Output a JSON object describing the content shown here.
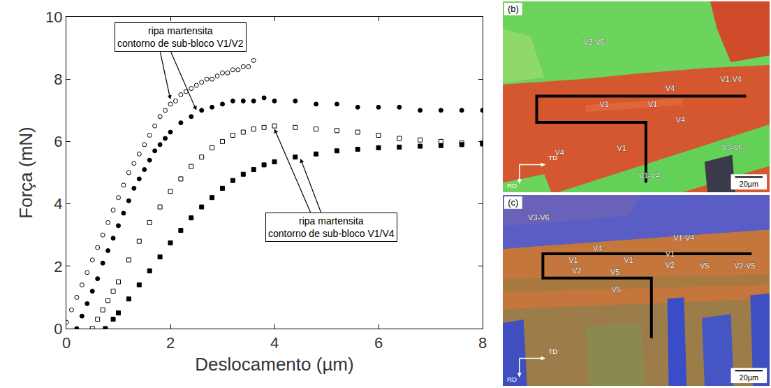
{
  "chart_data": {
    "type": "scatter",
    "x_label": "Deslocamento (µm)",
    "y_label": "Força (mN)",
    "xlim": [
      0,
      8
    ],
    "ylim": [
      0,
      10
    ],
    "xticks": [
      0,
      2,
      4,
      6,
      8
    ],
    "yticks": [
      0,
      2,
      4,
      6,
      8,
      10
    ],
    "grid": false,
    "series": [
      {
        "marker": "circle-open",
        "color": "#000000",
        "x": [
          0,
          0.1,
          0.2,
          0.3,
          0.4,
          0.5,
          0.6,
          0.7,
          0.8,
          0.9,
          1.0,
          1.1,
          1.2,
          1.3,
          1.4,
          1.5,
          1.6,
          1.7,
          1.8,
          1.9,
          2.0,
          2.1,
          2.2,
          2.3,
          2.4,
          2.5,
          2.6,
          2.7,
          2.8,
          2.9,
          3.0,
          3.1,
          3.2,
          3.3,
          3.4,
          3.5,
          3.6
        ],
        "values": [
          0.2,
          0.6,
          1.0,
          1.4,
          1.8,
          2.2,
          2.6,
          3.0,
          3.4,
          3.8,
          4.2,
          4.6,
          5.0,
          5.3,
          5.6,
          5.9,
          6.2,
          6.5,
          6.8,
          7.0,
          7.2,
          7.3,
          7.5,
          7.6,
          7.7,
          7.8,
          7.9,
          8.0,
          8.0,
          8.1,
          8.2,
          8.2,
          8.3,
          8.3,
          8.4,
          8.4,
          8.6
        ]
      },
      {
        "marker": "circle",
        "color": "#000000",
        "x": [
          0.2,
          0.3,
          0.4,
          0.5,
          0.6,
          0.7,
          0.8,
          0.9,
          1.0,
          1.1,
          1.2,
          1.3,
          1.4,
          1.5,
          1.6,
          1.7,
          1.8,
          1.9,
          2.0,
          2.2,
          2.4,
          2.6,
          2.8,
          3.0,
          3.2,
          3.4,
          3.6,
          3.8,
          4.0,
          4.4,
          4.8,
          5.2,
          5.6,
          6.0,
          6.4,
          6.8,
          7.2,
          7.6,
          8.0
        ],
        "values": [
          0,
          0.4,
          0.8,
          1.2,
          1.6,
          2.1,
          2.5,
          2.9,
          3.3,
          3.7,
          4.1,
          4.5,
          4.8,
          5.1,
          5.4,
          5.7,
          5.9,
          6.1,
          6.3,
          6.6,
          6.8,
          7.0,
          7.1,
          7.2,
          7.3,
          7.3,
          7.3,
          7.4,
          7.3,
          7.3,
          7.2,
          7.2,
          7.1,
          7.1,
          7.1,
          7.0,
          7.0,
          7.0,
          7.0
        ]
      },
      {
        "marker": "square-open",
        "color": "#000000",
        "x": [
          0.5,
          0.6,
          0.7,
          0.8,
          0.9,
          1.0,
          1.2,
          1.4,
          1.6,
          1.8,
          2.0,
          2.2,
          2.4,
          2.6,
          2.8,
          3.0,
          3.2,
          3.4,
          3.6,
          3.8,
          4.0,
          4.4,
          4.8,
          5.2,
          5.6,
          6.0,
          6.4,
          6.8,
          7.2,
          7.6,
          8.0
        ],
        "values": [
          0,
          0.3,
          0.6,
          0.9,
          1.2,
          1.5,
          2.2,
          2.8,
          3.4,
          3.9,
          4.4,
          4.8,
          5.2,
          5.5,
          5.8,
          6.0,
          6.2,
          6.3,
          6.4,
          6.45,
          6.5,
          6.45,
          6.4,
          6.35,
          6.3,
          6.2,
          6.1,
          6.05,
          6.0,
          5.95,
          5.95
        ]
      },
      {
        "marker": "square",
        "color": "#000000",
        "x": [
          0.75,
          0.9,
          1.0,
          1.2,
          1.4,
          1.6,
          1.8,
          2.0,
          2.2,
          2.4,
          2.6,
          2.8,
          3.0,
          3.2,
          3.4,
          3.6,
          3.8,
          4.0,
          4.4,
          4.8,
          5.2,
          5.6,
          6.0,
          6.4,
          6.8,
          7.2,
          7.6,
          8.0
        ],
        "values": [
          0,
          0.3,
          0.5,
          0.95,
          1.4,
          1.85,
          2.3,
          2.75,
          3.15,
          3.55,
          3.9,
          4.2,
          4.5,
          4.75,
          4.95,
          5.1,
          5.25,
          5.35,
          5.5,
          5.6,
          5.7,
          5.75,
          5.8,
          5.82,
          5.85,
          5.87,
          5.9,
          5.92
        ]
      }
    ],
    "annotations": [
      {
        "lines": [
          "ripa martensita",
          "contorno de sub-bloco V1/V2"
        ],
        "x": 2.2,
        "y": 9.35,
        "arrows": [
          {
            "from": [
              1.8,
              8.9
            ],
            "to": [
              2.0,
              7.35
            ]
          },
          {
            "from": [
              2.0,
              8.9
            ],
            "to": [
              2.5,
              7.0
            ]
          }
        ]
      },
      {
        "lines": [
          "ripa martensita",
          "contorno de sub-bloco V1/V4"
        ],
        "x": 5.1,
        "y": 3.25,
        "arrows": [
          {
            "from": [
              4.7,
              3.7
            ],
            "to": [
              4.0,
              6.4
            ]
          },
          {
            "from": [
              4.9,
              3.7
            ],
            "to": [
              4.5,
              5.45
            ]
          }
        ]
      }
    ]
  },
  "panels": [
    {
      "label": "(b)",
      "labels": [
        "V3-V6",
        "V1-V4",
        "V4",
        "V1",
        "V1",
        "V4",
        "V4",
        "V1",
        "V3-V6",
        "V1-V4"
      ],
      "axes": [
        "TD",
        "RD"
      ],
      "scale_bar": "20µm"
    },
    {
      "label": "(c)",
      "labels": [
        "V3-V6",
        "V1-V4",
        "V4",
        "V1",
        "V1",
        "V1",
        "V2",
        "V2",
        "V5",
        "V5",
        "V2-V5",
        "V5"
      ],
      "axes": [
        "TD",
        "RD"
      ],
      "scale_bar": "20µm"
    }
  ]
}
